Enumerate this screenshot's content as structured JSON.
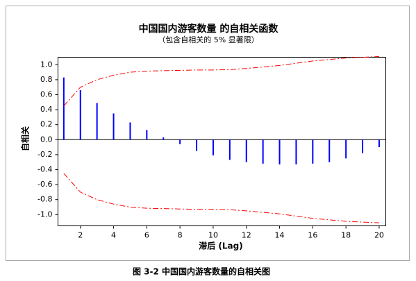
{
  "chart_data": {
    "type": "stem",
    "title": "中国国内游客数量 的自相关函数",
    "subtitle": "（包含自相关的 5% 显著限）",
    "ylabel": "自相关",
    "xlabel": "滞后 (Lag)",
    "x": [
      1,
      2,
      3,
      4,
      5,
      6,
      7,
      8,
      9,
      10,
      11,
      12,
      13,
      14,
      15,
      16,
      17,
      18,
      19,
      20
    ],
    "series": [
      {
        "kind": "stem",
        "color": "#0000ff",
        "values": [
          0.83,
          0.66,
          0.49,
          0.35,
          0.23,
          0.13,
          0.03,
          -0.06,
          -0.15,
          -0.21,
          -0.27,
          -0.3,
          -0.32,
          -0.33,
          -0.33,
          -0.32,
          -0.3,
          -0.25,
          -0.18,
          -0.1
        ]
      },
      {
        "kind": "dashline",
        "color": "#ff0000",
        "values": [
          0.45,
          0.7,
          0.8,
          0.86,
          0.9,
          0.915,
          0.92,
          0.925,
          0.93,
          0.93,
          0.935,
          0.95,
          0.97,
          0.99,
          1.02,
          1.05,
          1.07,
          1.09,
          1.1,
          1.11
        ]
      },
      {
        "kind": "dashline",
        "color": "#ff0000",
        "values": [
          -0.45,
          -0.7,
          -0.8,
          -0.86,
          -0.9,
          -0.915,
          -0.92,
          -0.925,
          -0.93,
          -0.93,
          -0.935,
          -0.95,
          -0.97,
          -0.99,
          -1.02,
          -1.05,
          -1.07,
          -1.09,
          -1.1,
          -1.11
        ]
      }
    ],
    "xlim": [
      0.65,
      20.4
    ],
    "ylim": [
      -1.15,
      1.1
    ],
    "xticks": [
      2,
      4,
      6,
      8,
      10,
      12,
      14,
      16,
      18,
      20
    ],
    "yticks": [
      {
        "value": 1.0,
        "label": "1.0"
      },
      0.8,
      0.6,
      0.4,
      0.2,
      {
        "value": 0,
        "label": "0.0"
      },
      -0.2,
      -0.4,
      -0.6,
      -0.8,
      {
        "value": -1.0,
        "label": "-1.0"
      }
    ]
  },
  "caption": "图 3-2 中国国内游客数量的自相关图"
}
